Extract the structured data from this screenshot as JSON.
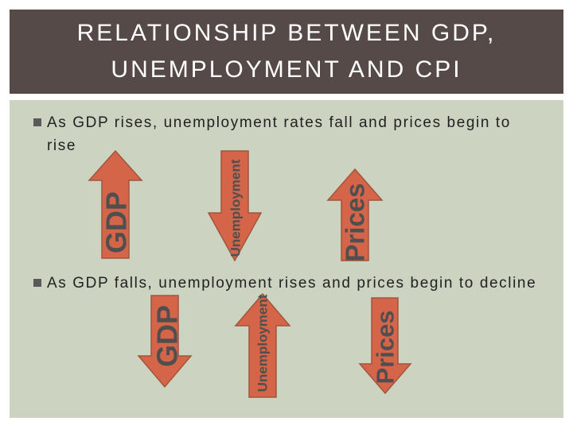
{
  "title": "RELATIONSHIP BETWEEN GDP, UNEMPLOYMENT AND CPI",
  "bullets": [
    "As GDP rises, unemployment rates fall and prices begin to rise",
    "As GDP falls, unemployment rises and prices begin to decline"
  ],
  "colors": {
    "title_bar": "#554a48",
    "content_bg": "#ccd3c0",
    "arrow_fill": "#d56548"
  },
  "arrows": {
    "row1": [
      {
        "label": "GDP",
        "direction": "up"
      },
      {
        "label": "Unemployment",
        "direction": "down"
      },
      {
        "label": "Prices",
        "direction": "up"
      }
    ],
    "row2": [
      {
        "label": "GDP",
        "direction": "down"
      },
      {
        "label": "Unemployment",
        "direction": "up"
      },
      {
        "label": "Prices",
        "direction": "down"
      }
    ]
  }
}
